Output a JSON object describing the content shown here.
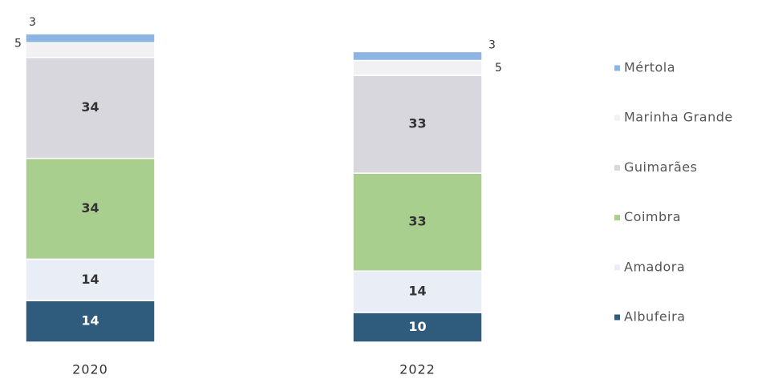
{
  "chart_data": {
    "type": "stacked_bar",
    "categories": [
      "2020",
      "2022"
    ],
    "series": [
      {
        "name": "Albufeira",
        "color": "#2f5b7c",
        "values": [
          14,
          10
        ]
      },
      {
        "name": "Amadora",
        "color": "#e9edf6",
        "values": [
          14,
          14
        ]
      },
      {
        "name": "Coimbra",
        "color": "#a9cf8f",
        "values": [
          34,
          33
        ]
      },
      {
        "name": "Guimarães",
        "color": "#d8d7dd",
        "values": [
          34,
          33
        ]
      },
      {
        "name": "Marinha Grande",
        "color": "#f1f1f3",
        "values": [
          5,
          5
        ]
      },
      {
        "name": "Mértola",
        "color": "#8db5e3",
        "values": [
          3,
          3
        ]
      }
    ],
    "legend": "right"
  }
}
